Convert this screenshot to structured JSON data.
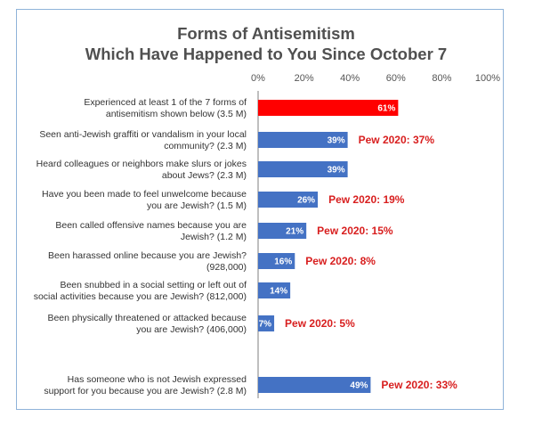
{
  "chart_data": {
    "type": "bar",
    "orientation": "horizontal",
    "title_lines": [
      "Forms of Antisemitism",
      "Which Have Happened to You Since October 7"
    ],
    "xlim": [
      0,
      100
    ],
    "x_ticks": [
      "0%",
      "20%",
      "40%",
      "60%",
      "80%",
      "100%"
    ],
    "grid": false,
    "bars": [
      {
        "label_lines": [
          "Experienced at least 1 of the 7 forms of",
          "antisemitism shown below (3.5 M)"
        ],
        "value": 61,
        "value_label": "61%",
        "color": "#ff0000",
        "annotation": ""
      },
      {
        "label_lines": [
          "Seen anti-Jewish graffiti or vandalism in your local",
          "community? (2.3 M)"
        ],
        "value": 39,
        "value_label": "39%",
        "color": "#4472c4",
        "annotation": "Pew 2020: 37%"
      },
      {
        "label_lines": [
          "Heard colleagues or neighbors make slurs or jokes",
          "about Jews? (2.3 M)"
        ],
        "value": 39,
        "value_label": "39%",
        "color": "#4472c4",
        "annotation": ""
      },
      {
        "label_lines": [
          "Have you been made to feel unwelcome because",
          "you are Jewish? (1.5 M)"
        ],
        "value": 26,
        "value_label": "26%",
        "color": "#4472c4",
        "annotation": "Pew 2020: 19%"
      },
      {
        "label_lines": [
          "Been called offensive names because you are",
          "Jewish? (1.2 M)"
        ],
        "value": 21,
        "value_label": "21%",
        "color": "#4472c4",
        "annotation": "Pew 2020: 15%"
      },
      {
        "label_lines": [
          "Been harassed online because you are Jewish?",
          "(928,000)"
        ],
        "value": 16,
        "value_label": "16%",
        "color": "#4472c4",
        "annotation": "Pew 2020: 8%"
      },
      {
        "label_lines": [
          "Been snubbed in a social setting or left out of",
          "social activities because you are Jewish? (812,000)"
        ],
        "value": 14,
        "value_label": "14%",
        "color": "#4472c4",
        "annotation": ""
      },
      {
        "label_lines": [
          "Been physically threatened or attacked because",
          "you are Jewish? (406,000)"
        ],
        "value": 7,
        "value_label": "7%",
        "color": "#4472c4",
        "annotation": "Pew 2020: 5%"
      },
      {
        "label_lines": [
          "Has someone who is not Jewish expressed",
          "support for you because you are Jewish? (2.8 M)"
        ],
        "value": 49,
        "value_label": "49%",
        "color": "#4472c4",
        "annotation": "Pew 2020: 33%"
      }
    ]
  }
}
